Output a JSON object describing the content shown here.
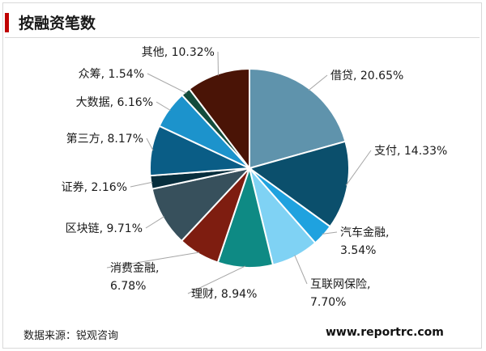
{
  "header": {
    "title": "按融资笔数"
  },
  "footer": {
    "source": "数据来源：锐观咨询",
    "website": "www.reportrc.com"
  },
  "chart_data": {
    "type": "pie",
    "title": "按融资笔数",
    "slices": [
      {
        "label": "借贷",
        "value": 20.65,
        "display": "借贷, 20.65%",
        "color": "#5f93ac"
      },
      {
        "label": "支付",
        "value": 14.33,
        "display": "支付, 14.33%",
        "color": "#0b4f6c"
      },
      {
        "label": "汽车金融",
        "value": 3.54,
        "display": [
          "汽车金融,",
          "3.54%"
        ],
        "color": "#1fa2df"
      },
      {
        "label": "互联网保险",
        "value": 7.7,
        "display": [
          "互联网保险,",
          "7.70%"
        ],
        "color": "#7fd2f4"
      },
      {
        "label": "理财",
        "value": 8.94,
        "display": "理财, 8.94%",
        "color": "#0e8a84"
      },
      {
        "label": "消费金融",
        "value": 6.78,
        "display": [
          "消费金融,",
          "6.78%"
        ],
        "color": "#7e1d10"
      },
      {
        "label": "区块链",
        "value": 9.71,
        "display": "区块链, 9.71%",
        "color": "#37505c"
      },
      {
        "label": "证券",
        "value": 2.16,
        "display": "证券, 2.16%",
        "color": "#072e3d"
      },
      {
        "label": "第三方",
        "value": 8.17,
        "display": "第三方, 8.17%",
        "color": "#0a5d86"
      },
      {
        "label": "大数据",
        "value": 6.16,
        "display": "大数据, 6.16%",
        "color": "#1c93cc"
      },
      {
        "label": "众筹",
        "value": 1.54,
        "display": "众筹, 1.54%",
        "color": "#124c3c"
      },
      {
        "label": "其他",
        "value": 10.32,
        "display": "其他, 10.32%",
        "color": "#4a1406"
      }
    ]
  }
}
